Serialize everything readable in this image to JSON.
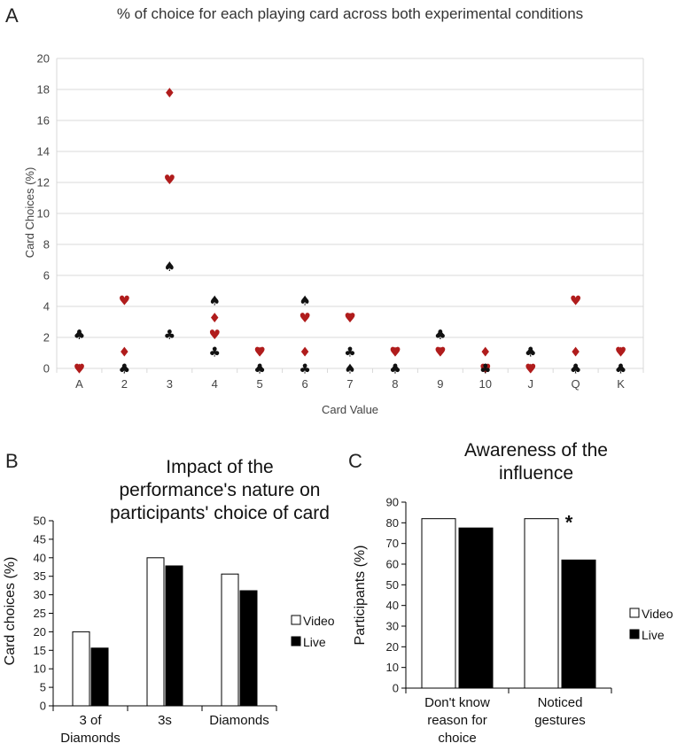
{
  "panels": {
    "a": {
      "letter": "A"
    },
    "b": {
      "letter": "B"
    },
    "c": {
      "letter": "C"
    }
  },
  "chart_data": [
    {
      "id": "A",
      "type": "scatter",
      "title": "% of choice for each playing card across both experimental conditions",
      "xlabel": "Card Value",
      "ylabel": "Card Choices (%)",
      "ylim": [
        0,
        20
      ],
      "yticks": [
        0,
        2,
        4,
        6,
        8,
        10,
        12,
        14,
        16,
        18,
        20
      ],
      "grid": true,
      "categories": [
        "A",
        "2",
        "3",
        "4",
        "5",
        "6",
        "7",
        "8",
        "9",
        "10",
        "J",
        "Q",
        "K"
      ],
      "series": [
        {
          "name": "Spades",
          "symbol": "♠",
          "color": "#111111",
          "values": [
            2.2,
            0,
            6.6,
            4.4,
            0,
            4.4,
            0,
            0,
            2.2,
            0,
            1.1,
            0,
            0
          ]
        },
        {
          "name": "Hearts",
          "symbol": "♥",
          "color": "#b01c1c",
          "values": [
            0,
            4.4,
            12.2,
            2.2,
            1.1,
            3.3,
            3.3,
            1.1,
            1.1,
            0,
            0,
            4.4,
            1.1
          ]
        },
        {
          "name": "Diamonds",
          "symbol": "♦",
          "color": "#b01c1c",
          "values": [
            0,
            1.1,
            17.8,
            3.3,
            1.1,
            1.1,
            3.3,
            1.1,
            1.1,
            1.1,
            0,
            1.1,
            1.1
          ]
        },
        {
          "name": "Clubs",
          "symbol": "♣",
          "color": "#111111",
          "values": [
            2.2,
            0,
            2.2,
            1.1,
            0,
            0,
            1.1,
            0,
            2.2,
            0,
            1.1,
            0,
            0
          ]
        }
      ]
    },
    {
      "id": "B",
      "type": "bar",
      "title": [
        "Impact of the",
        "performance's nature on",
        "participants' choice of card"
      ],
      "xlabel": "",
      "ylabel": "Card choices (%)",
      "ylim": [
        0,
        50
      ],
      "yticks": [
        0,
        5,
        10,
        15,
        20,
        25,
        30,
        35,
        40,
        45,
        50
      ],
      "categories": [
        [
          "3 of",
          "Diamonds"
        ],
        [
          "3s"
        ],
        [
          "Diamonds"
        ]
      ],
      "series": [
        {
          "name": "Video",
          "fill": "#ffffff",
          "values": [
            20,
            40,
            35.6
          ]
        },
        {
          "name": "Live",
          "fill": "#000000",
          "values": [
            15.6,
            37.8,
            31.1
          ]
        }
      ],
      "legend": "right"
    },
    {
      "id": "C",
      "type": "bar",
      "title": [
        "Awareness of the",
        "influence"
      ],
      "xlabel": "",
      "ylabel": "Participants (%)",
      "ylim": [
        0,
        90
      ],
      "yticks": [
        0,
        10,
        20,
        30,
        40,
        50,
        60,
        70,
        80,
        90
      ],
      "categories": [
        [
          "Don't know",
          "reason for",
          "choice"
        ],
        [
          "Noticed",
          "gestures"
        ]
      ],
      "series": [
        {
          "name": "Video",
          "fill": "#ffffff",
          "values": [
            82,
            82
          ]
        },
        {
          "name": "Live",
          "fill": "#000000",
          "values": [
            77.5,
            62
          ]
        }
      ],
      "annotations": [
        {
          "text": "*",
          "category": 1
        }
      ],
      "legend": "right"
    }
  ]
}
